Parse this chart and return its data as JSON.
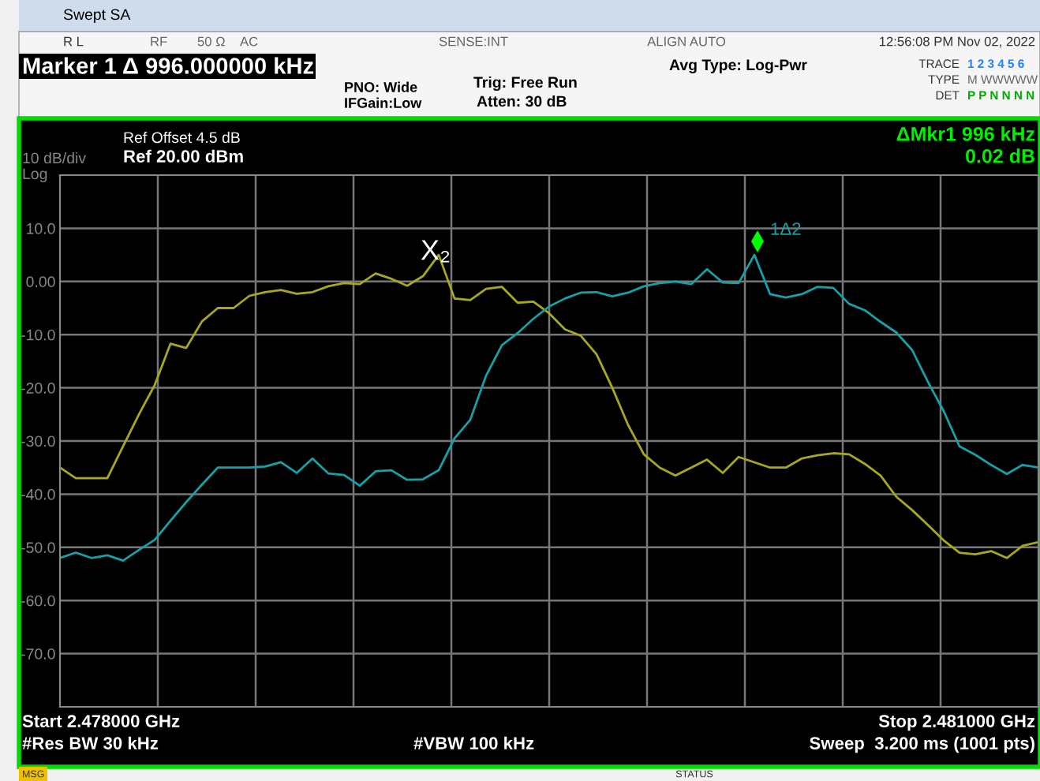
{
  "chart_data": {
    "type": "line",
    "title": "Swept SA",
    "categories": [
      null,
      null,
      null,
      null,
      null,
      null,
      null,
      null,
      null,
      null,
      null,
      null,
      null,
      null,
      null,
      null,
      null,
      null,
      null,
      null,
      null,
      null,
      null,
      null,
      null,
      null,
      null,
      null,
      null,
      null,
      null,
      null,
      null,
      null,
      null,
      null,
      null,
      null,
      null,
      null,
      null,
      null,
      null,
      null,
      null,
      null,
      null,
      null,
      null,
      null,
      null,
      null,
      null,
      null,
      null,
      null,
      null,
      null,
      null,
      null,
      null,
      null,
      null
    ],
    "ylim": [
      -80,
      20
    ],
    "yticks": [
      {
        "value": 10,
        "label": "10.0"
      },
      {
        "value": 0,
        "label": "0.00"
      },
      {
        "value": -10,
        "label": "-10.0"
      },
      {
        "value": -20,
        "label": "-20.0"
      },
      {
        "value": -30,
        "label": "-30.0"
      },
      {
        "value": -40,
        "label": "-40.0"
      },
      {
        "value": -50,
        "label": "-50.0"
      },
      {
        "value": -60,
        "label": "-60.0"
      },
      {
        "value": -70,
        "label": "-70.0"
      }
    ],
    "grid": true,
    "series": [
      {
        "color": "#a8a820",
        "values": [
          -35,
          -37,
          -37,
          -37,
          -31,
          -25,
          -19.5,
          -11.7,
          -12.5,
          -7.5,
          -5,
          -5,
          -2.7,
          -2,
          -1.6,
          -2.3,
          -2,
          -0.9,
          -0.3,
          -0.5,
          1.5,
          0.5,
          -0.8,
          1,
          5,
          -3.2,
          -3.5,
          -1.4,
          -1,
          -4,
          -3.8,
          -6,
          -9,
          -10.2,
          -13.7,
          -20,
          -27,
          -32.5,
          -35,
          -36.5,
          -35,
          -33.5,
          -36,
          -33,
          -34,
          -35,
          -35,
          -33.3,
          -32.7,
          -32.3,
          -32.5,
          -34.3,
          -36.5,
          -40.5,
          -43,
          -45.8,
          -48.7,
          -51,
          -51.3,
          -50.7,
          -52,
          -49.7,
          -49
        ]
      },
      {
        "color": "#18a0a8",
        "values": [
          -52,
          -51,
          -52,
          -51.5,
          -52.5,
          -50.5,
          -48.6,
          -45,
          -41.5,
          -38.2,
          -35,
          -35,
          -35,
          -34.8,
          -34,
          -36,
          -33.3,
          -36.1,
          -36.4,
          -38.4,
          -35.7,
          -35.5,
          -37.3,
          -37.2,
          -35.5,
          -29.5,
          -26,
          -17.7,
          -12,
          -9.7,
          -7,
          -4.7,
          -3.2,
          -2.1,
          -2,
          -2.8,
          -2.1,
          -0.9,
          -0.3,
          0,
          -0.5,
          2.3,
          -0.2,
          -0.3,
          5,
          -2.4,
          -3,
          -2.4,
          -1,
          -1.2,
          -4.2,
          -5.4,
          -7.6,
          -9.6,
          -12.9,
          -18.9,
          -24.4,
          -31,
          -32.6,
          -34.5,
          -36.2,
          -34.5,
          -35
        ]
      }
    ],
    "annotations": [
      "X₂",
      "1Δ2",
      "R L",
      "RF",
      "50 Ω",
      "AC",
      "SENSE:INT",
      "ALIGN AUTO",
      "12:56:08 PM Nov 02, 2022",
      "Marker 1 Δ 996.000000 kHz",
      "PNO: Wide",
      "IFGain:Low",
      "Trig: Free Run",
      "Atten: 30 dB",
      "Avg Type: Log-Pwr",
      "TRACE",
      "1 2 3 4 5 6",
      "TYPE",
      "M WWWWW",
      "DET",
      "P P N N N N",
      "Ref Offset 4.5 dB",
      "Ref 20.00 dBm",
      "10 dB/div",
      "Log",
      "ΔMkr1 996 kHz",
      "0.02 dB",
      "Start 2.478000 GHz",
      "Stop 2.481000 GHz",
      "#Res BW 30 kHz",
      "#VBW 100 kHz",
      "Sweep  3.200 ms (1001 pts)",
      "MSG",
      "STATUS"
    ]
  }
}
